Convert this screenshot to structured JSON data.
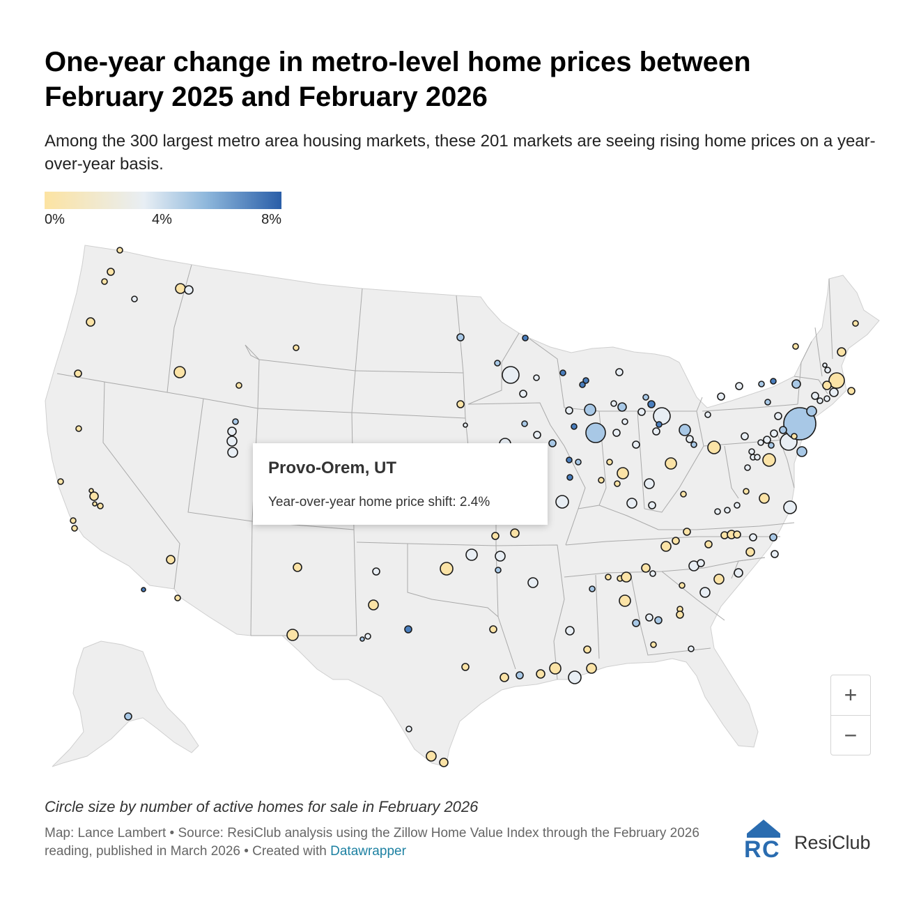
{
  "title": "One-year change in metro-level home prices between February 2025 and February 2026",
  "subtitle": "Among the 300 largest metro area housing markets, these 201 markets are seeing rising home prices on a year-over-year basis.",
  "legend": {
    "labels": [
      "0%",
      "4%",
      "8%"
    ],
    "colors": [
      "#fce3a2",
      "#e8eef4",
      "#8fb8dc",
      "#2a5ea8"
    ]
  },
  "tooltip": {
    "metro": "Provo-Orem, UT",
    "text": "Year-over-year home price shift: 2.4%"
  },
  "zoom": {
    "in_label": "+",
    "out_label": "−"
  },
  "size_note": "Circle size by number of active homes for sale in February 2026",
  "source": {
    "text": "Map: Lance Lambert • Source: ResiClub analysis using the Zillow Home Value Index through the February 2026 reading, published in March 2026 • Created with",
    "link_text": "Datawrapper"
  },
  "logo": {
    "name": "ResiClub",
    "mark": "RC"
  },
  "colors": {
    "land": "#eeeeee",
    "state_border": "#a9a9a9",
    "circle_stroke": "#1a1a1a"
  }
}
